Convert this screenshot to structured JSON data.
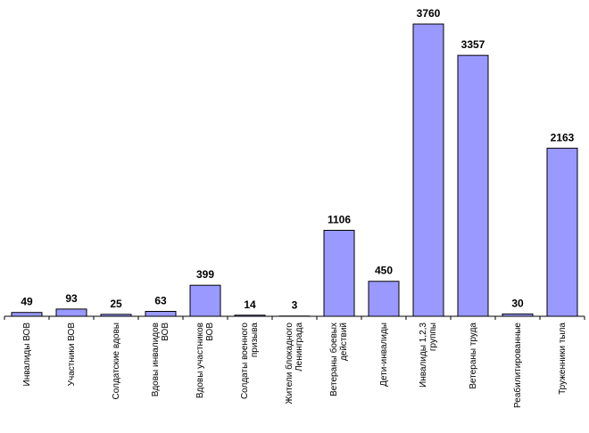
{
  "chart_data": {
    "type": "bar",
    "categories": [
      "Инвалиды ВОВ",
      "Участники ВОВ",
      "Солдатские вдовы",
      "Вдовы инвалидов\nВОВ",
      "Вдовы участников\nВОВ",
      "Солдаты военного\nпризыва",
      "Жители блокадного\nЛенинграда",
      "Ветераны боевых\nдействий",
      "Дети-инвалиды",
      "Инвалиды 1,2,3\nгруппы",
      "Ветераны труда",
      "Реабилитированные",
      "Труженники тыла"
    ],
    "values": [
      49,
      93,
      25,
      63,
      399,
      14,
      3,
      1106,
      450,
      3760,
      3357,
      30,
      2163
    ],
    "color": "#9999ff"
  }
}
